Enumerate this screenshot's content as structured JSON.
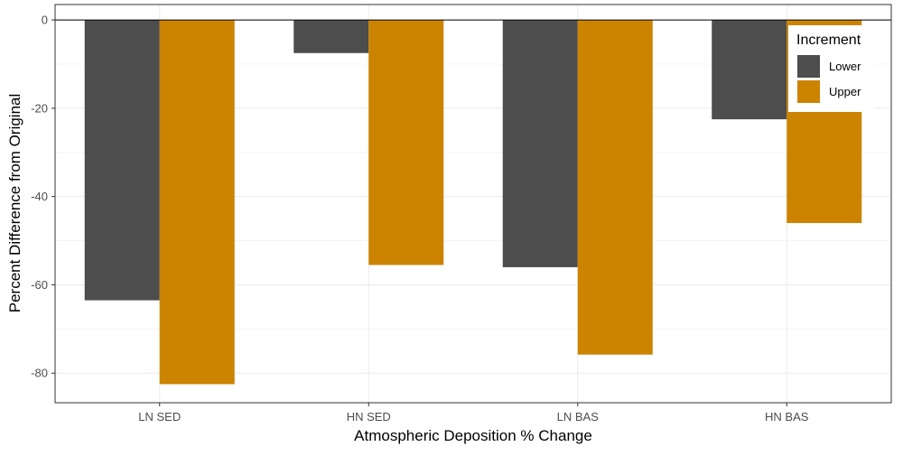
{
  "chart_data": {
    "type": "bar",
    "xlabel": "Atmospheric Deposition % Change",
    "ylabel": "Percent Difference from Original",
    "categories": [
      "LN SED",
      "HN SED",
      "LN BAS",
      "HN BAS"
    ],
    "series": [
      {
        "name": "Lower",
        "color": "#4d4d4d",
        "values": [
          -63.5,
          -7.5,
          -56.0,
          -22.5
        ]
      },
      {
        "name": "Upper",
        "color": "#cc8400",
        "values": [
          -82.5,
          -55.5,
          -75.8,
          -46.0
        ]
      }
    ],
    "ylim": [
      -86.7,
      3.5
    ],
    "yticks": [
      0,
      -20,
      -40,
      -60,
      -80
    ],
    "ytick_labels": [
      "0",
      "-20",
      "-40",
      "-60",
      "-80"
    ],
    "grid": true,
    "zero_line": true,
    "legend": {
      "title": "Increment",
      "placement": "top-right"
    }
  }
}
